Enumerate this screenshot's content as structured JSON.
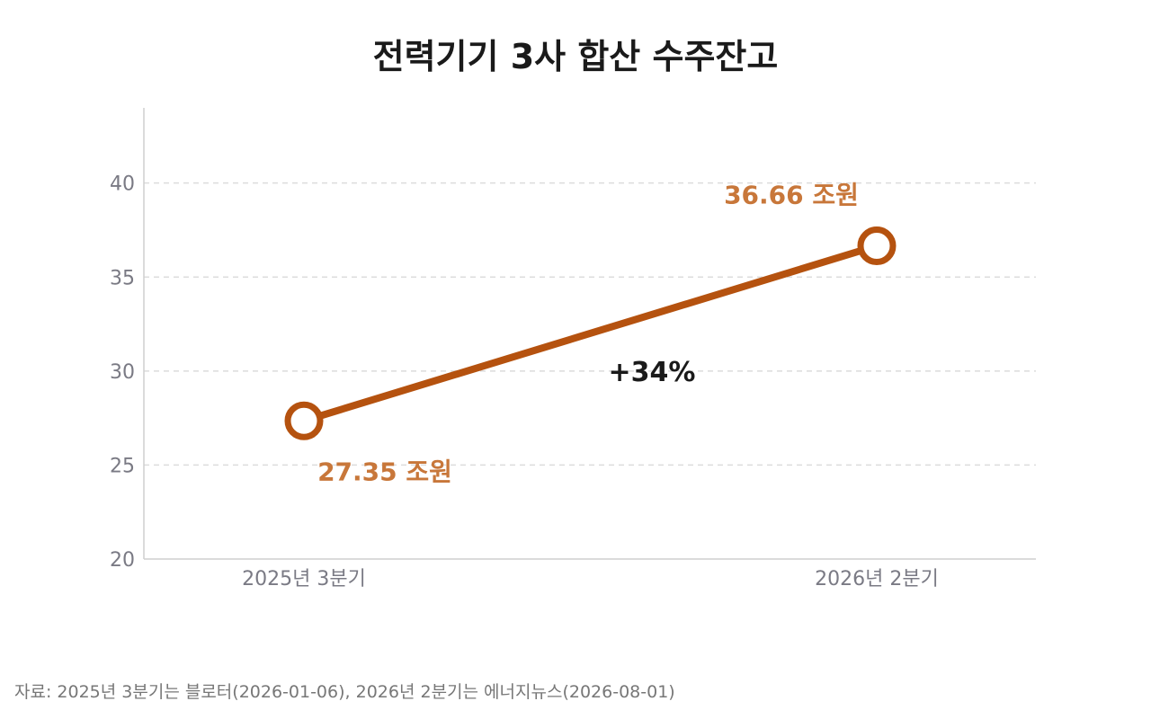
{
  "chart_data": {
    "type": "line",
    "title": "전력기기 3사 합산 수주잔고",
    "categories": [
      "2025년 3분기",
      "2026년 2분기"
    ],
    "series": [
      {
        "values": [
          27.35,
          36.66
        ],
        "data_labels": [
          "27.35 조원",
          "36.66 조원"
        ],
        "color": "#b5520f",
        "label_color": "#c8773a"
      }
    ],
    "ylim": [
      20,
      44
    ],
    "yticks": [
      20,
      25,
      30,
      35,
      40
    ],
    "xlabel": "",
    "ylabel": "",
    "grid": true,
    "annotation": "+34%",
    "source": "자료: 2025년 3분기는 블로터(2026-01-06), 2026년 2분기는 에너지뉴스(2026-08-01)"
  }
}
